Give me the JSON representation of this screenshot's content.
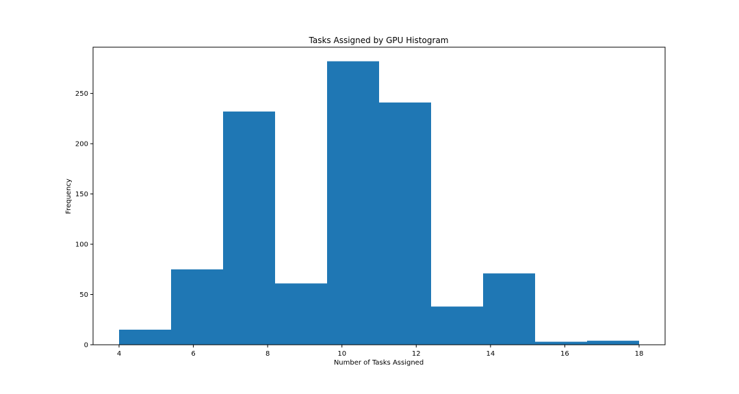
{
  "chart_data": {
    "type": "bar",
    "title": "Tasks Assigned by GPU Histogram",
    "xlabel": "Number of Tasks Assigned",
    "ylabel": "Frequency",
    "bin_edges": [
      4,
      5.4,
      6.8,
      8.2,
      9.6,
      11.0,
      12.4,
      13.8,
      15.2,
      16.6,
      18.0
    ],
    "values": [
      15,
      75,
      232,
      61,
      282,
      241,
      38,
      71,
      3,
      4
    ],
    "xlim": [
      3.3,
      18.7
    ],
    "ylim": [
      0,
      296
    ],
    "xticks": [
      4,
      6,
      8,
      10,
      12,
      14,
      16,
      18
    ],
    "yticks": [
      0,
      50,
      100,
      150,
      200,
      250
    ],
    "bar_color": "#1f77b4",
    "grid": false
  }
}
